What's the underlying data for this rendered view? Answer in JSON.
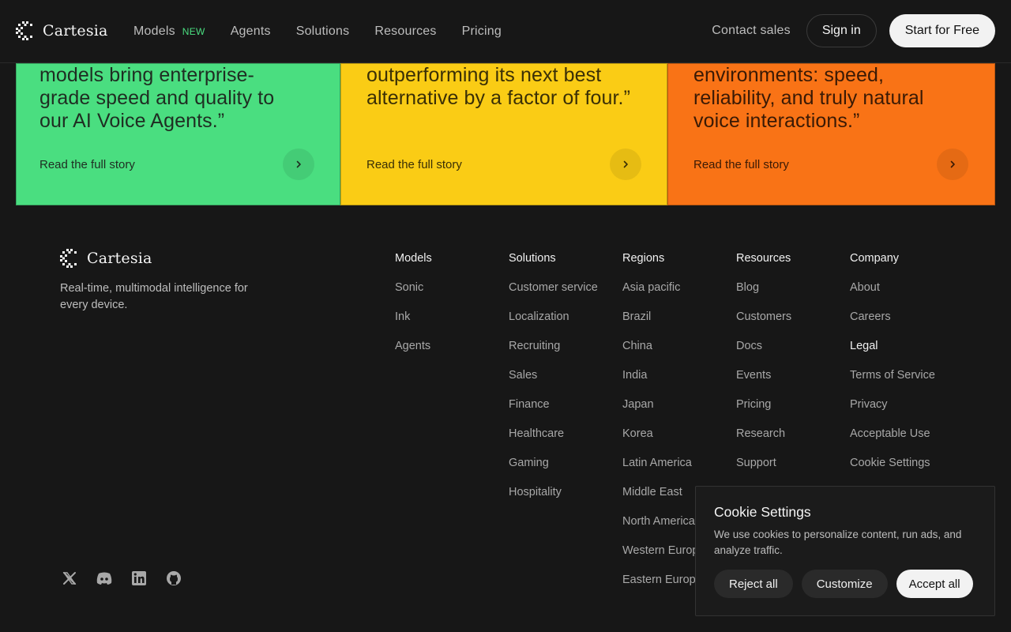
{
  "brand": {
    "name": "Cartesia"
  },
  "nav": {
    "items": [
      {
        "label": "Models",
        "badge": "NEW"
      },
      {
        "label": "Agents"
      },
      {
        "label": "Solutions"
      },
      {
        "label": "Resources"
      },
      {
        "label": "Pricing"
      }
    ],
    "contact_label": "Contact sales",
    "signin_label": "Sign in",
    "start_label": "Start for Free"
  },
  "cards": [
    {
      "quote": "models bring enterprise-grade speed and quality to our AI Voice Agents.”",
      "link": "Read the full story",
      "color": "#4ade80"
    },
    {
      "quote": "outperforming its next best alternative by a factor of four.”",
      "link": "Read the full story",
      "color": "#facc15"
    },
    {
      "quote": "environments: speed, reliability, and truly natural voice interactions.”",
      "link": "Read the full story",
      "color": "#f97316"
    }
  ],
  "footer": {
    "tagline": "Real-time, multimodal intelligence for every device.",
    "columns": {
      "models": {
        "title": "Models",
        "items": [
          "Sonic",
          "Ink",
          "Agents"
        ]
      },
      "solutions": {
        "title": "Solutions",
        "items": [
          "Customer service",
          "Localization",
          "Recruiting",
          "Sales",
          "Finance",
          "Healthcare",
          "Gaming",
          "Hospitality"
        ]
      },
      "regions": {
        "title": "Regions",
        "items": [
          "Asia pacific",
          "Brazil",
          "China",
          "India",
          "Japan",
          "Korea",
          "Latin America",
          "Middle East",
          "North America",
          "Western Europe",
          "Eastern Europe"
        ]
      },
      "resources": {
        "title": "Resources",
        "items": [
          "Blog",
          "Customers",
          "Docs",
          "Events",
          "Pricing",
          "Research",
          "Support"
        ]
      },
      "company": {
        "title": "Company",
        "items": [
          "About",
          "Careers",
          "Legal",
          "Terms of Service",
          "Privacy",
          "Acceptable Use",
          "Cookie Settings"
        ]
      }
    },
    "socials": [
      "x-icon",
      "discord-icon",
      "linkedin-icon",
      "github-icon"
    ]
  },
  "cookie": {
    "title": "Cookie Settings",
    "text": "We use cookies to personalize content, run ads, and analyze traffic.",
    "reject_label": "Reject all",
    "customize_label": "Customize",
    "accept_label": "Accept all"
  }
}
